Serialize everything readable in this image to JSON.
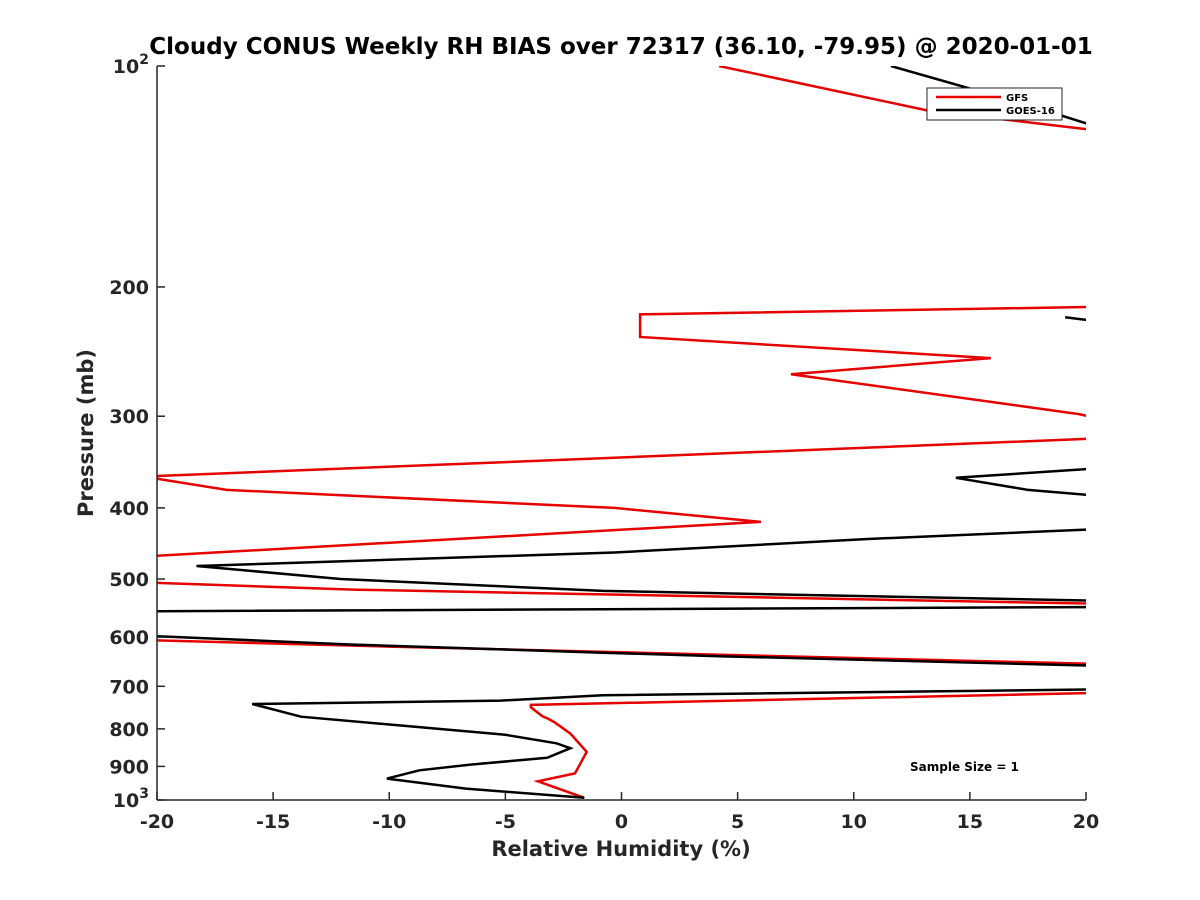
{
  "chart_data": {
    "type": "line",
    "title": "Cloudy CONUS Weekly RH BIAS over 72317 (36.10, -79.95) @ 2020-01-01",
    "xlabel": "Relative Humidity (%)",
    "ylabel": "Pressure (mb)",
    "xlim": [
      -20,
      20
    ],
    "ylim": [
      100,
      1000
    ],
    "y_scale": "log",
    "y_reversed": true,
    "grid": false,
    "legend_position": "top-right",
    "x_ticks": [
      {
        "value": -20,
        "label": "-20"
      },
      {
        "value": -15,
        "label": "-15"
      },
      {
        "value": -10,
        "label": "-10"
      },
      {
        "value": -5,
        "label": "-5"
      },
      {
        "value": 0,
        "label": "0"
      },
      {
        "value": 5,
        "label": "5"
      },
      {
        "value": 10,
        "label": "10"
      },
      {
        "value": 15,
        "label": "15"
      },
      {
        "value": 20,
        "label": "20"
      }
    ],
    "y_ticks": [
      {
        "value": 100,
        "base": "10",
        "exp": "2"
      },
      {
        "value": 200,
        "label": "200"
      },
      {
        "value": 300,
        "label": "300"
      },
      {
        "value": 400,
        "label": "400"
      },
      {
        "value": 500,
        "label": "500"
      },
      {
        "value": 600,
        "label": "600"
      },
      {
        "value": 700,
        "label": "700"
      },
      {
        "value": 800,
        "label": "800"
      },
      {
        "value": 900,
        "label": "900"
      },
      {
        "value": 1000,
        "base": "10",
        "exp": "3"
      }
    ],
    "series": [
      {
        "name": "GFS",
        "color": "#e60000",
        "points": [
          [
            4.2,
            100
          ],
          [
            13.2,
            115
          ],
          [
            20.1,
            122
          ],
          [
            null,
            null
          ],
          [
            20.1,
            213
          ],
          [
            0.8,
            218
          ],
          [
            0.8,
            234
          ],
          [
            15.9,
            250
          ],
          [
            7.3,
            263
          ],
          [
            19.7,
            298
          ],
          [
            20.1,
            300
          ],
          [
            null,
            null
          ],
          [
            20.1,
            322
          ],
          [
            -20.1,
            362
          ],
          [
            -20.0,
            365
          ],
          [
            -17.0,
            378
          ],
          [
            -0.3,
            400
          ],
          [
            6.0,
            418
          ],
          [
            -20.1,
            465
          ],
          [
            null,
            null
          ],
          [
            -20.1,
            506
          ],
          [
            -11.4,
            517
          ],
          [
            20.1,
            540
          ],
          [
            null,
            null
          ],
          [
            -20.1,
            606
          ],
          [
            -10.0,
            618
          ],
          [
            20.1,
            652
          ],
          [
            null,
            null
          ],
          [
            20.1,
            715
          ],
          [
            -3.9,
            742
          ],
          [
            -3.9,
            748
          ],
          [
            -3.4,
            769
          ],
          [
            -3.2,
            774
          ],
          [
            -2.9,
            783
          ],
          [
            -2.2,
            812
          ],
          [
            -1.5,
            860
          ],
          [
            -2.0,
            920
          ],
          [
            -3.6,
            943
          ],
          [
            -1.6,
            993
          ]
        ]
      },
      {
        "name": "GOES-16",
        "color": "#000000",
        "points": [
          [
            11.6,
            100
          ],
          [
            17.5,
            113
          ],
          [
            20.1,
            120
          ],
          [
            null,
            null
          ],
          [
            19.1,
            220
          ],
          [
            20.1,
            222
          ],
          [
            null,
            null
          ],
          [
            20.1,
            354
          ],
          [
            14.4,
            364
          ],
          [
            17.5,
            378
          ],
          [
            20.1,
            384
          ],
          [
            null,
            null
          ],
          [
            20.1,
            428
          ],
          [
            10.6,
            441
          ],
          [
            -0.3,
            460
          ],
          [
            -18.3,
            480
          ],
          [
            -12.1,
            500
          ],
          [
            -0.8,
            519
          ],
          [
            20.1,
            535
          ],
          [
            null,
            null
          ],
          [
            20.1,
            546
          ],
          [
            -20.1,
            553
          ],
          [
            null,
            null
          ],
          [
            -20.1,
            598
          ],
          [
            -11.7,
            614
          ],
          [
            -0.8,
            630
          ],
          [
            4.2,
            637
          ],
          [
            20.1,
            656
          ],
          [
            null,
            null
          ],
          [
            20.1,
            707
          ],
          [
            -0.8,
            720
          ],
          [
            -5.2,
            732
          ],
          [
            -15.9,
            740
          ],
          [
            -13.8,
            770
          ],
          [
            -5.0,
            815
          ],
          [
            -2.8,
            837
          ],
          [
            -2.2,
            850
          ],
          [
            -3.2,
            876
          ],
          [
            -6.5,
            895
          ],
          [
            -8.7,
            911
          ],
          [
            -10.1,
            935
          ],
          [
            -6.7,
            965
          ],
          [
            -1.6,
            993
          ]
        ]
      }
    ],
    "annotations": [
      {
        "text": "Sample Size = 1"
      }
    ]
  }
}
